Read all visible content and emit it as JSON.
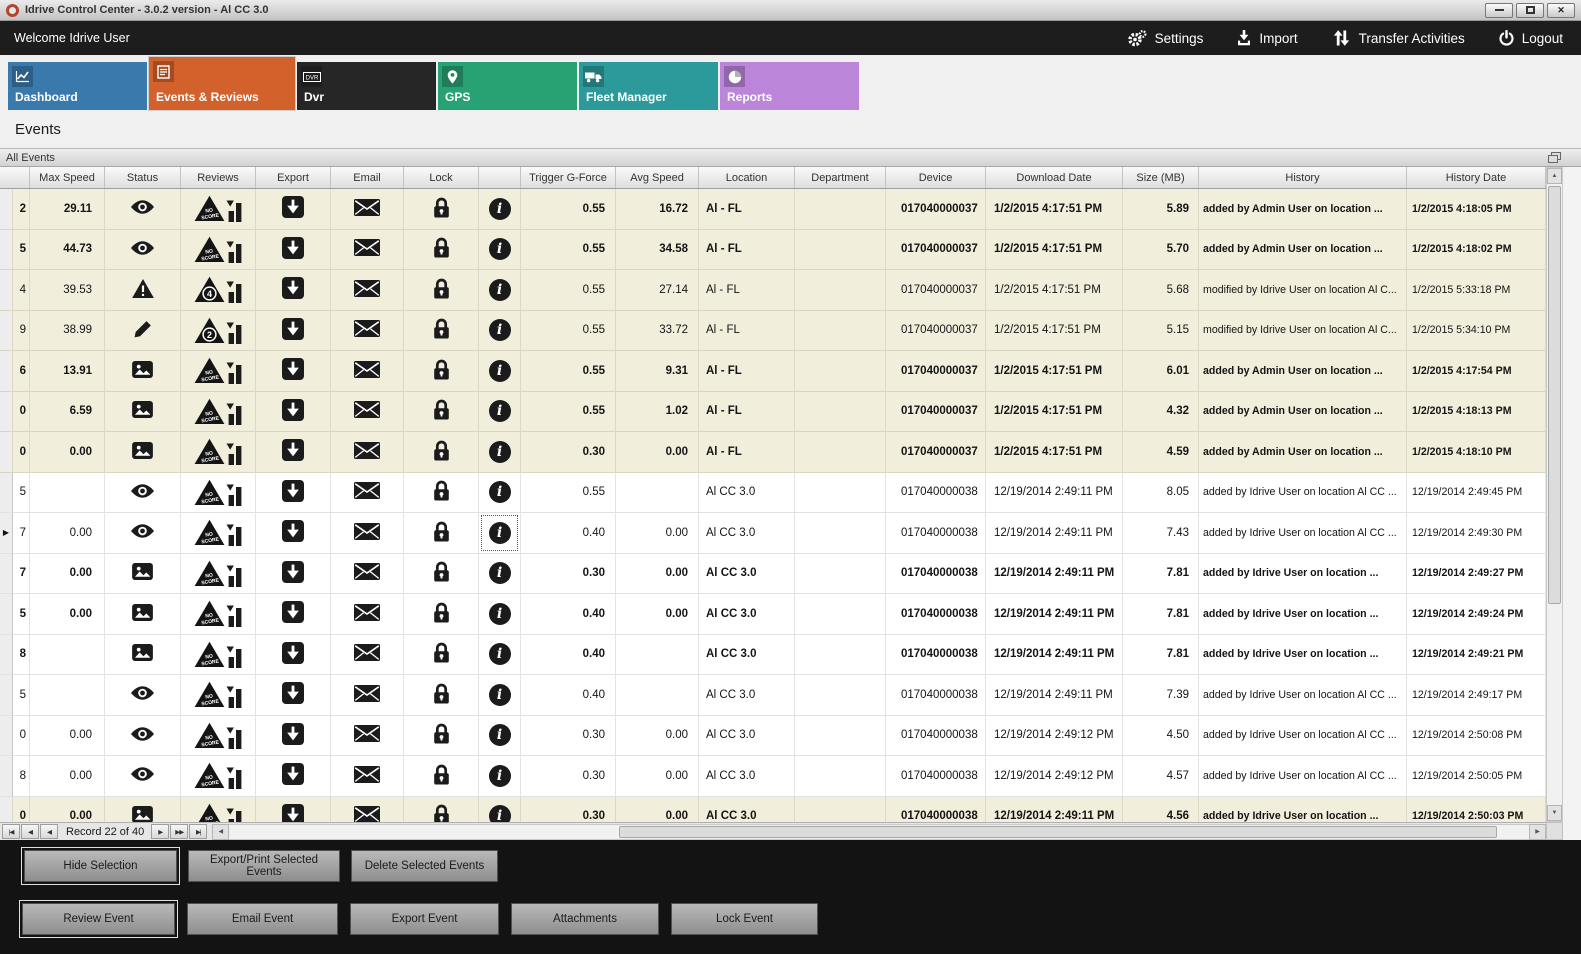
{
  "window": {
    "title": "Idrive Control Center - 3.0.2 version - Al CC 3.0"
  },
  "topbar": {
    "welcome": "Welcome Idrive User",
    "actions": [
      {
        "id": "settings",
        "label": "Settings",
        "icon": "gear-icon"
      },
      {
        "id": "import",
        "label": "Import",
        "icon": "import-icon"
      },
      {
        "id": "transfer-activities",
        "label": "Transfer Activities",
        "icon": "transfer-icon"
      },
      {
        "id": "logout",
        "label": "Logout",
        "icon": "power-icon"
      }
    ]
  },
  "tabs": [
    {
      "id": "dashboard",
      "label": "Dashboard",
      "color": "#3a79ab",
      "icon": "line-chart-icon",
      "active": false
    },
    {
      "id": "events-reviews",
      "label": "Events & Reviews",
      "color": "#d2612b",
      "icon": "events-icon",
      "active": true
    },
    {
      "id": "dvr",
      "label": "Dvr",
      "color": "#262626",
      "icon": "dvr-icon",
      "active": false
    },
    {
      "id": "gps",
      "label": "GPS",
      "color": "#28a173",
      "icon": "map-pin-icon",
      "active": false
    },
    {
      "id": "fleet-manager",
      "label": "Fleet Manager",
      "color": "#2c9a9a",
      "icon": "truck-icon",
      "active": false
    },
    {
      "id": "reports",
      "label": "Reports",
      "color": "#bb85da",
      "icon": "pie-icon",
      "active": false
    }
  ],
  "page": {
    "title": "Events"
  },
  "panel": {
    "title": "All Events"
  },
  "grid": {
    "columns": [
      "Max Speed",
      "Status",
      "Reviews",
      "Export",
      "Email",
      "Lock",
      "",
      "Trigger G-Force",
      "Avg Speed",
      "Location",
      "Department",
      "Device",
      "Download Date",
      "Size (MB)",
      "History",
      "History Date"
    ],
    "rows": [
      {
        "edge": "2",
        "max_speed": "29.11",
        "status": "eye",
        "review": "NO SCORE",
        "trigger_g_force": "0.55",
        "avg_speed": "16.72",
        "location": "Al - FL",
        "department": "",
        "device": "017040000037",
        "download_date": "1/2/2015 4:17:51 PM",
        "size_mb": "5.89",
        "history": "added by Admin User on location ...",
        "history_date": "1/2/2015 4:18:05 PM",
        "emphasized": true,
        "group": true,
        "selected": false
      },
      {
        "edge": "5",
        "max_speed": "44.73",
        "status": "eye",
        "review": "NO SCORE",
        "trigger_g_force": "0.55",
        "avg_speed": "34.58",
        "location": "Al - FL",
        "department": "",
        "device": "017040000037",
        "download_date": "1/2/2015 4:17:51 PM",
        "size_mb": "5.70",
        "history": "added by Admin User on location ...",
        "history_date": "1/2/2015 4:18:02 PM",
        "emphasized": true,
        "group": true,
        "selected": false
      },
      {
        "edge": "4",
        "max_speed": "39.53",
        "status": "warning",
        "review": "4",
        "trigger_g_force": "0.55",
        "avg_speed": "27.14",
        "location": "Al - FL",
        "department": "",
        "device": "017040000037",
        "download_date": "1/2/2015 4:17:51 PM",
        "size_mb": "5.68",
        "history": "modified by Idrive User on location Al C...",
        "history_date": "1/2/2015 5:33:18 PM",
        "emphasized": false,
        "group": true,
        "selected": false
      },
      {
        "edge": "9",
        "max_speed": "38.99",
        "status": "pencil",
        "review": "2",
        "trigger_g_force": "0.55",
        "avg_speed": "33.72",
        "location": "Al - FL",
        "department": "",
        "device": "017040000037",
        "download_date": "1/2/2015 4:17:51 PM",
        "size_mb": "5.15",
        "history": "modified by Idrive User on location Al C...",
        "history_date": "1/2/2015 5:34:10 PM",
        "emphasized": false,
        "group": true,
        "selected": false
      },
      {
        "edge": "6",
        "max_speed": "13.91",
        "status": "image",
        "review": "NO SCORE",
        "trigger_g_force": "0.55",
        "avg_speed": "9.31",
        "location": "Al - FL",
        "department": "",
        "device": "017040000037",
        "download_date": "1/2/2015 4:17:51 PM",
        "size_mb": "6.01",
        "history": "added by Admin User on location ...",
        "history_date": "1/2/2015 4:17:54 PM",
        "emphasized": true,
        "group": true,
        "selected": false
      },
      {
        "edge": "0",
        "max_speed": "6.59",
        "status": "image",
        "review": "NO SCORE",
        "trigger_g_force": "0.55",
        "avg_speed": "1.02",
        "location": "Al - FL",
        "department": "",
        "device": "017040000037",
        "download_date": "1/2/2015 4:17:51 PM",
        "size_mb": "4.32",
        "history": "added by Admin User on location ...",
        "history_date": "1/2/2015 4:18:13 PM",
        "emphasized": true,
        "group": true,
        "selected": false
      },
      {
        "edge": "0",
        "max_speed": "0.00",
        "status": "image",
        "review": "NO SCORE",
        "trigger_g_force": "0.30",
        "avg_speed": "0.00",
        "location": "Al - FL",
        "department": "",
        "device": "017040000037",
        "download_date": "1/2/2015 4:17:51 PM",
        "size_mb": "4.59",
        "history": "added by Admin User on location ...",
        "history_date": "1/2/2015 4:18:10 PM",
        "emphasized": true,
        "group": true,
        "selected": false
      },
      {
        "edge": "5",
        "max_speed": "",
        "status": "eye",
        "review": "NO SCORE",
        "trigger_g_force": "0.55",
        "avg_speed": "",
        "location": "Al CC 3.0",
        "department": "",
        "device": "017040000038",
        "download_date": "12/19/2014 2:49:11 PM",
        "size_mb": "8.05",
        "history": "added by Idrive User on location Al CC ...",
        "history_date": "12/19/2014 2:49:45 PM",
        "emphasized": false,
        "group": false,
        "selected": false
      },
      {
        "edge": "7",
        "max_speed": "0.00",
        "status": "eye",
        "review": "NO SCORE",
        "trigger_g_force": "0.40",
        "avg_speed": "0.00",
        "location": "Al CC 3.0",
        "department": "",
        "device": "017040000038",
        "download_date": "12/19/2014 2:49:11 PM",
        "size_mb": "7.43",
        "history": "added by Idrive User on location Al CC ...",
        "history_date": "12/19/2014 2:49:30 PM",
        "emphasized": false,
        "group": false,
        "selected": true
      },
      {
        "edge": "7",
        "max_speed": "0.00",
        "status": "image",
        "review": "NO SCORE",
        "trigger_g_force": "0.30",
        "avg_speed": "0.00",
        "location": "Al CC 3.0",
        "department": "",
        "device": "017040000038",
        "download_date": "12/19/2014 2:49:11 PM",
        "size_mb": "7.81",
        "history": "added by Idrive User on location ...",
        "history_date": "12/19/2014 2:49:27 PM",
        "emphasized": true,
        "group": false,
        "selected": false
      },
      {
        "edge": "5",
        "max_speed": "0.00",
        "status": "image",
        "review": "NO SCORE",
        "trigger_g_force": "0.40",
        "avg_speed": "0.00",
        "location": "Al CC 3.0",
        "department": "",
        "device": "017040000038",
        "download_date": "12/19/2014 2:49:11 PM",
        "size_mb": "7.81",
        "history": "added by Idrive User on location ...",
        "history_date": "12/19/2014 2:49:24 PM",
        "emphasized": true,
        "group": false,
        "selected": false
      },
      {
        "edge": "8",
        "max_speed": "",
        "status": "image",
        "review": "NO SCORE",
        "trigger_g_force": "0.40",
        "avg_speed": "",
        "location": "Al CC 3.0",
        "department": "",
        "device": "017040000038",
        "download_date": "12/19/2014 2:49:11 PM",
        "size_mb": "7.81",
        "history": "added by Idrive User on location ...",
        "history_date": "12/19/2014 2:49:21 PM",
        "emphasized": true,
        "group": false,
        "selected": false
      },
      {
        "edge": "5",
        "max_speed": "",
        "status": "eye",
        "review": "NO SCORE",
        "trigger_g_force": "0.40",
        "avg_speed": "",
        "location": "Al CC 3.0",
        "department": "",
        "device": "017040000038",
        "download_date": "12/19/2014 2:49:11 PM",
        "size_mb": "7.39",
        "history": "added by Idrive User on location Al CC ...",
        "history_date": "12/19/2014 2:49:17 PM",
        "emphasized": false,
        "group": false,
        "selected": false
      },
      {
        "edge": "0",
        "max_speed": "0.00",
        "status": "eye",
        "review": "NO SCORE",
        "trigger_g_force": "0.30",
        "avg_speed": "0.00",
        "location": "Al CC 3.0",
        "department": "",
        "device": "017040000038",
        "download_date": "12/19/2014 2:49:12 PM",
        "size_mb": "4.50",
        "history": "added by Idrive User on location Al CC ...",
        "history_date": "12/19/2014 2:50:08 PM",
        "emphasized": false,
        "group": false,
        "selected": false
      },
      {
        "edge": "8",
        "max_speed": "0.00",
        "status": "eye",
        "review": "NO SCORE",
        "trigger_g_force": "0.30",
        "avg_speed": "0.00",
        "location": "Al CC 3.0",
        "department": "",
        "device": "017040000038",
        "download_date": "12/19/2014 2:49:12 PM",
        "size_mb": "4.57",
        "history": "added by Idrive User on location Al CC ...",
        "history_date": "12/19/2014 2:50:05 PM",
        "emphasized": false,
        "group": false,
        "selected": false
      },
      {
        "edge": "0",
        "max_speed": "0.00",
        "status": "image",
        "review": "NO SCORE",
        "trigger_g_force": "0.30",
        "avg_speed": "0.00",
        "location": "Al CC 3.0",
        "department": "",
        "device": "017040000038",
        "download_date": "12/19/2014 2:49:11 PM",
        "size_mb": "4.56",
        "history": "added by Idrive User on location ...",
        "history_date": "12/19/2014 2:50:03 PM",
        "emphasized": true,
        "group": true,
        "selected": false
      }
    ]
  },
  "navigator": {
    "record_text": "Record 22 of 40"
  },
  "footer": {
    "selection_buttons": [
      {
        "label": "Hide Selection",
        "focused": true
      },
      {
        "label": "Export/Print Selected Events",
        "focused": false
      },
      {
        "label": "Delete Selected  Events",
        "focused": false
      }
    ],
    "event_buttons": [
      {
        "label": "Review Event",
        "focused": true
      },
      {
        "label": "Email Event",
        "focused": false
      },
      {
        "label": "Export Event",
        "focused": false
      },
      {
        "label": "Attachments",
        "focused": false
      },
      {
        "label": "Lock Event",
        "focused": false
      }
    ]
  },
  "colors": {
    "group_row_bg": "#f1eedb",
    "topbar_bg": "#1d1d1d",
    "footer_bg": "#131313",
    "active_tab": "#d2612b"
  }
}
